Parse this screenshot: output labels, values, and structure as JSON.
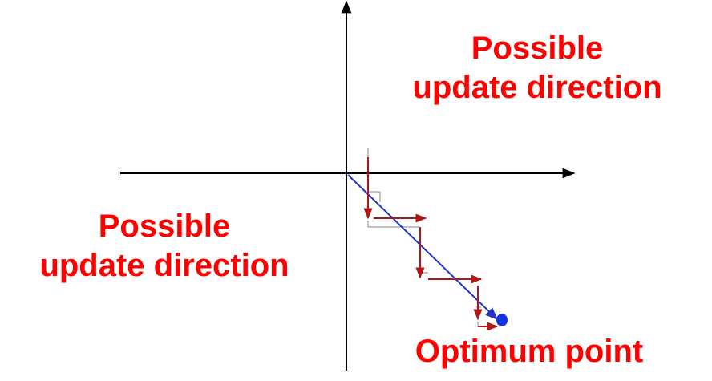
{
  "labels": {
    "upper_right": {
      "line1": "Possible",
      "line2": "update direction"
    },
    "lower_left": {
      "line1": "Possible",
      "line2": "update direction"
    },
    "optimum": "Optimum point"
  },
  "colors": {
    "label_text": "#ff0000",
    "axis": "#000000",
    "step_arrows": "#b01818",
    "direct_path": "#2233cc",
    "optimum_marker": "#1133dd"
  },
  "icons": {
    "optimum_marker": "filled-circle",
    "arrowheads": "triangle-arrowhead"
  }
}
